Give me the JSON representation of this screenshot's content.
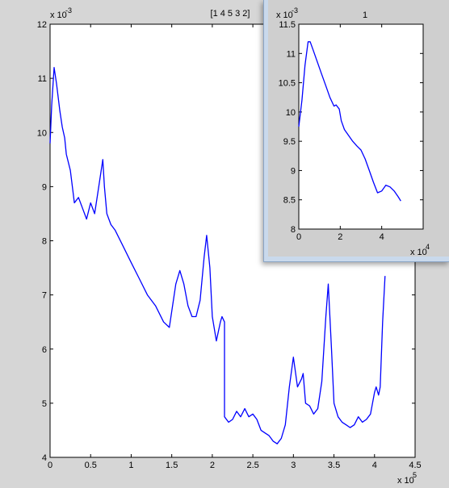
{
  "chart_data": [
    {
      "type": "line",
      "title": "[1 4 5 3 2]",
      "xlabel": "",
      "ylabel": "",
      "x_exponent_label": "x 10",
      "x_exponent": "5",
      "y_exponent_label": "x 10",
      "y_exponent": "-3",
      "xlim": [
        0,
        4.5
      ],
      "ylim": [
        4,
        12
      ],
      "xticks": [
        "0",
        "0.5",
        "1",
        "1.5",
        "2",
        "2.5",
        "3",
        "3.5",
        "4",
        "4.5"
      ],
      "yticks": [
        "4",
        "5",
        "6",
        "7",
        "8",
        "9",
        "10",
        "11",
        "12"
      ],
      "grid": false,
      "series": [
        {
          "color": "#0000ff",
          "x": [
            0,
            0.02,
            0.05,
            0.08,
            0.12,
            0.15,
            0.18,
            0.2,
            0.25,
            0.3,
            0.35,
            0.4,
            0.45,
            0.5,
            0.55,
            0.6,
            0.65,
            0.67,
            0.7,
            0.75,
            0.8,
            0.9,
            1.0,
            1.1,
            1.2,
            1.3,
            1.4,
            1.47,
            1.5,
            1.55,
            1.6,
            1.65,
            1.7,
            1.75,
            1.8,
            1.85,
            1.9,
            1.93,
            1.97,
            2.0,
            2.05,
            2.1,
            2.12,
            2.15,
            2.15,
            2.2,
            2.25,
            2.3,
            2.35,
            2.4,
            2.45,
            2.5,
            2.55,
            2.6,
            2.65,
            2.7,
            2.75,
            2.8,
            2.85,
            2.9,
            2.95,
            3.0,
            3.05,
            3.1,
            3.12,
            3.15,
            3.2,
            3.25,
            3.3,
            3.35,
            3.4,
            3.43,
            3.47,
            3.5,
            3.55,
            3.6,
            3.65,
            3.7,
            3.75,
            3.8,
            3.85,
            3.9,
            3.95,
            4.0,
            4.02,
            4.05,
            4.07,
            4.1,
            4.13
          ],
          "y": [
            9.8,
            10.5,
            11.2,
            10.9,
            10.4,
            10.1,
            9.9,
            9.6,
            9.3,
            8.7,
            8.8,
            8.6,
            8.4,
            8.7,
            8.5,
            9.0,
            9.5,
            9.0,
            8.5,
            8.3,
            8.2,
            7.9,
            7.6,
            7.3,
            7.0,
            6.8,
            6.5,
            6.4,
            6.7,
            7.2,
            7.45,
            7.2,
            6.8,
            6.6,
            6.6,
            6.9,
            7.7,
            8.1,
            7.5,
            6.6,
            6.15,
            6.5,
            6.6,
            6.5,
            4.75,
            4.65,
            4.7,
            4.85,
            4.75,
            4.9,
            4.75,
            4.8,
            4.7,
            4.5,
            4.45,
            4.4,
            4.3,
            4.25,
            4.35,
            4.6,
            5.3,
            5.85,
            5.3,
            5.45,
            5.55,
            5.0,
            4.95,
            4.8,
            4.9,
            5.4,
            6.6,
            7.2,
            6.0,
            5.0,
            4.75,
            4.65,
            4.6,
            4.55,
            4.6,
            4.75,
            4.65,
            4.7,
            4.8,
            5.2,
            5.3,
            5.15,
            5.3,
            6.5,
            7.35
          ]
        }
      ]
    },
    {
      "type": "line",
      "title": "1",
      "xlabel": "",
      "ylabel": "",
      "x_exponent_label": "x 10",
      "x_exponent": "4",
      "y_exponent_label": "x 10",
      "y_exponent": "-3",
      "xlim": [
        0,
        6
      ],
      "ylim": [
        8,
        11.5
      ],
      "xticks": [
        "0",
        "2",
        "4"
      ],
      "yticks": [
        "8",
        "8.5",
        "9",
        "9.5",
        "10",
        "10.5",
        "11",
        "11.5"
      ],
      "grid": false,
      "series": [
        {
          "color": "#0000ff",
          "x": [
            0,
            0.15,
            0.3,
            0.45,
            0.55,
            0.7,
            0.9,
            1.1,
            1.3,
            1.5,
            1.7,
            1.8,
            1.95,
            2.05,
            2.2,
            2.4,
            2.6,
            2.8,
            3.0,
            3.2,
            3.4,
            3.6,
            3.8,
            4.0,
            4.2,
            4.4,
            4.6,
            4.8,
            4.92
          ],
          "y": [
            9.75,
            10.2,
            10.8,
            11.2,
            11.2,
            11.05,
            10.85,
            10.65,
            10.45,
            10.25,
            10.1,
            10.12,
            10.05,
            9.85,
            9.7,
            9.6,
            9.5,
            9.42,
            9.35,
            9.2,
            9.0,
            8.8,
            8.62,
            8.65,
            8.75,
            8.72,
            8.65,
            8.55,
            8.48
          ]
        }
      ]
    }
  ]
}
